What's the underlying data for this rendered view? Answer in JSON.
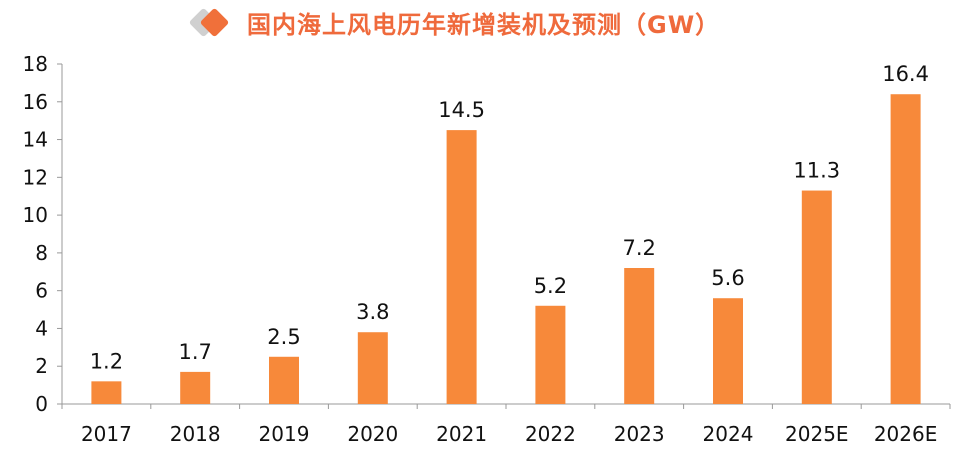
{
  "title": "国内海上风电历年新增装机及预测（GW）",
  "colors": {
    "bar": "#f7893a",
    "title": "#ef6a3c",
    "diamond_accent": "#f0703a",
    "diamond_muted": "#d0d0d0",
    "axis": "#999999"
  },
  "icons": [
    "grey-diamond-icon",
    "orange-diamond-icon"
  ],
  "chart_data": {
    "type": "bar",
    "title": "国内海上风电历年新增装机及预测（GW）",
    "categories": [
      "2017",
      "2018",
      "2019",
      "2020",
      "2021",
      "2022",
      "2023",
      "2024",
      "2025E",
      "2026E"
    ],
    "values": [
      1.2,
      1.7,
      2.5,
      3.8,
      14.5,
      5.2,
      7.2,
      5.6,
      11.3,
      16.4
    ],
    "data_labels": [
      "1.2",
      "1.7",
      "2.5",
      "3.8",
      "14.5",
      "5.2",
      "7.2",
      "5.6",
      "11.3",
      "16.4"
    ],
    "yticks": [
      "0",
      "2",
      "4",
      "6",
      "8",
      "10",
      "12",
      "14",
      "16",
      "18"
    ],
    "ylim": [
      0,
      18
    ],
    "xlabel": "",
    "ylabel": "",
    "grid": false,
    "legend": "none"
  }
}
